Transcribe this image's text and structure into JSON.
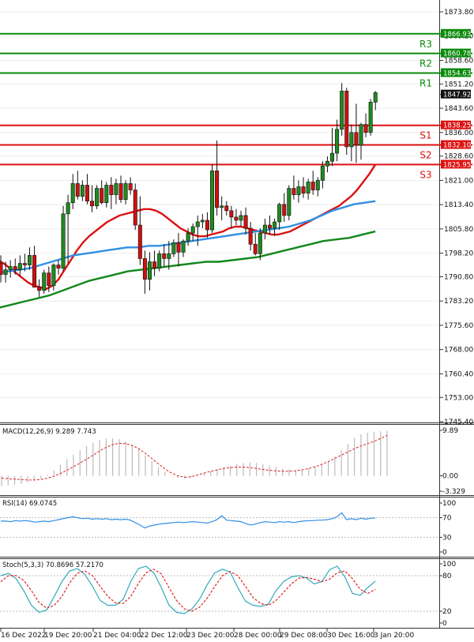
{
  "chart_data": [
    {
      "type": "candlestick",
      "price_axis": {
        "ylim": [
          1745.4,
          1873.8
        ],
        "ticks": [
          "1873.80",
          "1866.20",
          "1858.60",
          "1851.20",
          "1843.60",
          "1836.00",
          "1828.60",
          "1821.00",
          "1813.40",
          "1805.80",
          "1798.20",
          "1790.80",
          "1783.20",
          "1775.60",
          "1768.00",
          "1760.40",
          "1753.00",
          "1745.40"
        ]
      },
      "x_labels": [
        "16 Dec 2022",
        "19 Dec 20:00",
        "21 Dec 04:00",
        "22 Dec 12:00",
        "23 Dec 20:00",
        "28 Dec 00:00",
        "29 Dec 08:00",
        "30 Dec 16:00",
        "3 Jan 20:00"
      ],
      "levels": [
        {
          "name": "R3",
          "value": 1866.93,
          "value_label": "1866.93",
          "color": "#0a8a0a"
        },
        {
          "name": "R2",
          "value": 1860.78,
          "value_label": "1860.78",
          "color": "#0a8a0a"
        },
        {
          "name": "R1",
          "value": 1854.63,
          "value_label": "1854.63",
          "color": "#0a8a0a"
        },
        {
          "name": "S1",
          "value": 1838.25,
          "value_label": "1838.25",
          "color": "#dd1111"
        },
        {
          "name": "S2",
          "value": 1832.1,
          "value_label": "1832.10",
          "color": "#dd1111"
        },
        {
          "name": "S3",
          "value": 1825.95,
          "value_label": "1825.95",
          "color": "#dd1111"
        }
      ],
      "current_price": {
        "value": 1847.92,
        "label": "1847.92"
      },
      "candles": [
        [
          1795.0,
          1797.5,
          1789.0,
          1791.5
        ],
        [
          1791.5,
          1795.5,
          1789.0,
          1793.0
        ],
        [
          1793.0,
          1796.0,
          1790.5,
          1794.0
        ],
        [
          1794.0,
          1796.5,
          1791.5,
          1793.0
        ],
        [
          1793.0,
          1797.5,
          1791.0,
          1795.0
        ],
        [
          1795.0,
          1798.0,
          1792.5,
          1794.5
        ],
        [
          1794.5,
          1800.0,
          1793.0,
          1797.5
        ],
        [
          1797.5,
          1800.5,
          1788.0,
          1787.5
        ],
        [
          1787.5,
          1790.0,
          1784.5,
          1786.5
        ],
        [
          1786.5,
          1793.0,
          1785.5,
          1792.0
        ],
        [
          1792.0,
          1794.0,
          1786.0,
          1788.0
        ],
        [
          1788.0,
          1795.0,
          1786.5,
          1794.5
        ],
        [
          1794.5,
          1796.0,
          1791.5,
          1793.5
        ],
        [
          1793.5,
          1813.0,
          1792.5,
          1810.5
        ],
        [
          1810.5,
          1816.5,
          1795.0,
          1814.0
        ],
        [
          1814.0,
          1823.0,
          1812.0,
          1820.0
        ],
        [
          1820.0,
          1824.0,
          1815.0,
          1816.0
        ],
        [
          1816.0,
          1821.0,
          1814.5,
          1819.5
        ],
        [
          1819.5,
          1823.0,
          1813.5,
          1814.5
        ],
        [
          1814.5,
          1819.5,
          1811.0,
          1813.0
        ],
        [
          1813.0,
          1819.5,
          1812.0,
          1818.5
        ],
        [
          1818.5,
          1821.0,
          1813.5,
          1814.0
        ],
        [
          1814.0,
          1820.5,
          1812.5,
          1819.5
        ],
        [
          1819.5,
          1822.0,
          1812.0,
          1816.5
        ],
        [
          1816.5,
          1821.5,
          1813.5,
          1820.0
        ],
        [
          1820.0,
          1822.5,
          1814.0,
          1815.0
        ],
        [
          1815.0,
          1821.0,
          1813.5,
          1820.0
        ],
        [
          1820.0,
          1822.0,
          1816.5,
          1818.0
        ],
        [
          1818.0,
          1820.0,
          1805.5,
          1807.0
        ],
        [
          1807.0,
          1816.0,
          1794.5,
          1796.5
        ],
        [
          1796.5,
          1799.0,
          1785.5,
          1790.0
        ],
        [
          1790.0,
          1798.5,
          1786.5,
          1795.5
        ],
        [
          1795.5,
          1799.0,
          1791.0,
          1793.5
        ],
        [
          1793.5,
          1799.0,
          1792.5,
          1798.0
        ],
        [
          1798.0,
          1801.0,
          1794.0,
          1796.5
        ],
        [
          1796.5,
          1802.0,
          1793.0,
          1798.0
        ],
        [
          1798.0,
          1802.5,
          1797.0,
          1801.5
        ],
        [
          1801.5,
          1804.5,
          1794.0,
          1798.5
        ],
        [
          1798.5,
          1802.5,
          1797.0,
          1802.0
        ],
        [
          1802.0,
          1806.0,
          1800.5,
          1804.5
        ],
        [
          1804.5,
          1807.5,
          1802.0,
          1806.5
        ],
        [
          1806.5,
          1810.0,
          1800.5,
          1808.0
        ],
        [
          1808.0,
          1810.5,
          1806.0,
          1808.5
        ],
        [
          1808.5,
          1811.0,
          1803.0,
          1805.5
        ],
        [
          1805.5,
          1826.0,
          1804.5,
          1824.0
        ],
        [
          1824.0,
          1833.5,
          1810.0,
          1812.5
        ],
        [
          1812.5,
          1816.0,
          1808.5,
          1813.0
        ],
        [
          1813.0,
          1814.5,
          1810.0,
          1811.5
        ],
        [
          1811.5,
          1813.0,
          1806.0,
          1809.5
        ],
        [
          1809.5,
          1812.0,
          1807.0,
          1808.5
        ],
        [
          1808.5,
          1811.5,
          1806.5,
          1810.0
        ],
        [
          1810.0,
          1812.5,
          1804.0,
          1806.0
        ],
        [
          1806.0,
          1808.0,
          1799.0,
          1801.0
        ],
        [
          1801.0,
          1804.5,
          1797.5,
          1798.0
        ],
        [
          1798.0,
          1806.0,
          1796.0,
          1804.5
        ],
        [
          1804.5,
          1809.0,
          1802.5,
          1807.0
        ],
        [
          1807.0,
          1810.0,
          1804.0,
          1806.0
        ],
        [
          1806.0,
          1809.0,
          1803.5,
          1808.0
        ],
        [
          1808.0,
          1814.0,
          1805.5,
          1813.5
        ],
        [
          1813.5,
          1817.0,
          1808.0,
          1810.0
        ],
        [
          1810.0,
          1819.5,
          1808.5,
          1818.5
        ],
        [
          1818.5,
          1822.5,
          1815.0,
          1816.5
        ],
        [
          1816.5,
          1821.0,
          1814.0,
          1819.0
        ],
        [
          1819.0,
          1822.0,
          1815.5,
          1817.0
        ],
        [
          1817.0,
          1821.5,
          1815.0,
          1820.5
        ],
        [
          1820.5,
          1824.0,
          1816.5,
          1818.0
        ],
        [
          1818.0,
          1822.0,
          1816.0,
          1821.0
        ],
        [
          1821.0,
          1827.0,
          1818.5,
          1825.5
        ],
        [
          1825.5,
          1828.5,
          1823.5,
          1827.0
        ],
        [
          1827.0,
          1837.5,
          1825.5,
          1829.5
        ],
        [
          1829.5,
          1840.0,
          1827.0,
          1837.0
        ],
        [
          1837.0,
          1851.5,
          1835.0,
          1849.0
        ],
        [
          1849.0,
          1850.0,
          1829.0,
          1831.5
        ],
        [
          1831.5,
          1838.5,
          1827.0,
          1836.0
        ],
        [
          1836.0,
          1845.0,
          1826.5,
          1832.0
        ],
        [
          1832.0,
          1839.0,
          1827.5,
          1838.5
        ],
        [
          1838.5,
          1842.0,
          1834.5,
          1836.0
        ],
        [
          1836.0,
          1846.5,
          1835.0,
          1845.5
        ],
        [
          1845.5,
          1849.0,
          1843.0,
          1848.5
        ]
      ],
      "moving_averages": [
        {
          "color": "#dd1111",
          "values": [
            1796.0,
            1795.0,
            1793.5,
            1792.0,
            1790.5,
            1789.0,
            1788.0,
            1787.5,
            1787.0,
            1788.0,
            1790.0,
            1793.0,
            1796.0,
            1799.0,
            1801.5,
            1803.5,
            1805.0,
            1806.5,
            1808.0,
            1809.0,
            1810.0,
            1810.5,
            1811.0,
            1811.5,
            1812.0,
            1812.0,
            1811.5,
            1810.5,
            1809.0,
            1807.5,
            1806.0,
            1805.0,
            1804.0,
            1803.5,
            1803.5,
            1804.0,
            1804.5,
            1805.0,
            1806.0,
            1806.5,
            1806.5,
            1806.0,
            1805.5,
            1805.0,
            1804.5,
            1804.0,
            1804.0,
            1804.5,
            1805.0,
            1806.0,
            1807.0,
            1808.0,
            1809.0,
            1810.0,
            1811.0,
            1812.0,
            1813.0,
            1814.5,
            1816.0,
            1818.0,
            1820.5,
            1823.0,
            1826.0
          ]
        },
        {
          "color": "#2f8fe6",
          "values": [
            1792.0,
            1792.5,
            1793.0,
            1793.5,
            1794.5,
            1795.5,
            1796.5,
            1797.5,
            1798.0,
            1798.5,
            1799.0,
            1799.5,
            1800.0,
            1800.0,
            1800.5,
            1800.5,
            1801.0,
            1801.5,
            1802.0,
            1802.5,
            1803.0,
            1803.5,
            1804.0,
            1804.5,
            1805.0,
            1805.5,
            1806.0,
            1806.5,
            1807.5,
            1808.5,
            1810.0,
            1811.5,
            1812.5,
            1813.5,
            1814.0,
            1814.5
          ]
        },
        {
          "color": "#11881a",
          "values": [
            1781.0,
            1782.0,
            1783.0,
            1784.0,
            1785.0,
            1786.5,
            1788.0,
            1789.5,
            1790.5,
            1791.5,
            1792.5,
            1793.0,
            1793.5,
            1794.0,
            1794.5,
            1795.0,
            1795.5,
            1795.5,
            1796.0,
            1796.5,
            1797.0,
            1798.0,
            1799.0,
            1800.0,
            1801.0,
            1802.0,
            1802.5,
            1803.0,
            1804.0,
            1805.0
          ]
        }
      ]
    },
    {
      "type": "bar",
      "title": "MACD(12,26,9) 9.289 7.743",
      "ylim": [
        -3.329,
        9.89
      ],
      "ticks": [
        "9.89",
        "0.00",
        "-3.329"
      ],
      "histogram": [
        -2.2,
        -2.1,
        -1.9,
        -1.7,
        -1.4,
        -1.0,
        -0.6,
        0.2,
        1.2,
        2.4,
        3.6,
        4.6,
        5.6,
        6.5,
        7.2,
        7.8,
        8.1,
        8.2,
        8.0,
        7.5,
        6.8,
        5.8,
        4.5,
        3.2,
        1.8,
        0.9,
        0.1,
        -0.4,
        -0.6,
        -0.3,
        0.2,
        0.6,
        1.0,
        1.5,
        1.9,
        2.2,
        2.6,
        2.8,
        2.9,
        2.8,
        2.5,
        2.2,
        1.9,
        1.6,
        1.4,
        1.3,
        1.4,
        1.6,
        2.0,
        2.5,
        3.2,
        4.2,
        5.6,
        7.0,
        8.2,
        9.0,
        9.4,
        9.6,
        9.7,
        9.8
      ],
      "signal": [
        -0.5,
        -0.6,
        -0.7,
        -0.8,
        -0.9,
        -0.9,
        -0.8,
        -0.5,
        -0.1,
        0.5,
        1.2,
        2.0,
        2.8,
        3.6,
        4.5,
        5.4,
        6.2,
        6.8,
        7.1,
        7.0,
        6.6,
        5.9,
        4.9,
        3.8,
        2.6,
        1.5,
        0.6,
        0.0,
        -0.3,
        -0.2,
        0.2,
        0.6,
        1.0,
        1.3,
        1.6,
        1.8,
        1.9,
        1.9,
        1.8,
        1.6,
        1.4,
        1.2,
        1.1,
        1.0,
        1.0,
        1.1,
        1.3,
        1.6,
        2.0,
        2.5,
        3.1,
        3.8,
        4.5,
        5.2,
        5.9,
        6.5,
        7.0,
        7.5,
        8.1,
        8.8
      ]
    },
    {
      "type": "line",
      "title": "RSI(14) 69.0745",
      "ylim": [
        0,
        100
      ],
      "ticks": [
        "100",
        "70",
        "30",
        "0"
      ],
      "values": [
        63,
        63,
        62,
        64,
        63,
        64,
        63,
        61,
        62,
        63,
        62,
        64,
        66,
        68,
        70,
        72,
        70,
        68,
        69,
        67,
        68,
        67,
        68,
        66,
        67,
        66,
        67,
        65,
        60,
        55,
        49,
        53,
        55,
        57,
        58,
        59,
        60,
        61,
        60,
        61,
        62,
        61,
        60,
        59,
        62,
        66,
        74,
        65,
        64,
        63,
        62,
        58,
        55,
        57,
        60,
        62,
        61,
        60,
        62,
        61,
        62,
        60,
        62,
        63,
        64,
        64,
        65,
        65,
        66,
        68,
        72,
        80,
        66,
        68,
        66,
        69,
        67,
        69,
        69
      ]
    },
    {
      "type": "line",
      "title": "Stoch(5,3,3) 70.8696 57.2170",
      "ylim": [
        0,
        100
      ],
      "ticks": [
        "100",
        "80",
        "20",
        "0"
      ],
      "series": [
        {
          "color": "#33aabb",
          "values": [
            80,
            84,
            75,
            55,
            30,
            18,
            22,
            45,
            70,
            88,
            92,
            82,
            62,
            38,
            30,
            30,
            40,
            70,
            92,
            96,
            85,
            60,
            30,
            18,
            16,
            24,
            40,
            65,
            85,
            91,
            86,
            60,
            37,
            30,
            28,
            32,
            55,
            70,
            78,
            80,
            76,
            66,
            70,
            90,
            96,
            78,
            50,
            47,
            60,
            71
          ]
        },
        {
          "color": "#dd2222",
          "values": [
            70,
            80,
            80,
            72,
            55,
            35,
            25,
            30,
            45,
            68,
            84,
            88,
            80,
            62,
            45,
            34,
            33,
            45,
            67,
            85,
            91,
            83,
            60,
            38,
            24,
            20,
            27,
            42,
            62,
            80,
            87,
            80,
            62,
            43,
            33,
            30,
            38,
            52,
            66,
            76,
            77,
            74,
            70,
            74,
            85,
            88,
            75,
            57,
            50,
            57
          ]
        }
      ]
    }
  ]
}
